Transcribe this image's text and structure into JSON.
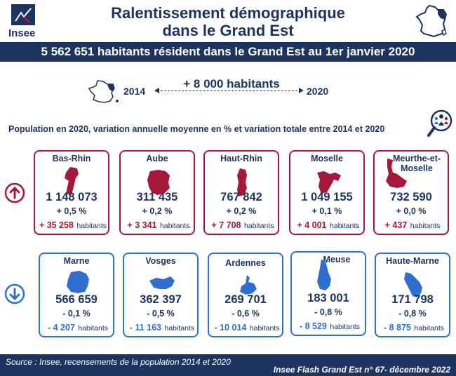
{
  "logo": {
    "text": "Insee"
  },
  "header": {
    "title_line1": "Ralentissement démographique",
    "title_line2": "dans le Grand Est"
  },
  "banner": "5 562 651 habitants résident dans le Grand Est au 1er janvier 2020",
  "evolution": {
    "year_start": "2014",
    "year_end": "2020",
    "delta": "+ 8 000 habitants"
  },
  "subtitle": "Population en 2020, variation annuelle moyenne en % et variation totale entre 2014 et 2020",
  "colors": {
    "navy": "#1d3461",
    "red": "#a6183a",
    "blue": "#2f6fcf"
  },
  "icons": {
    "up": "arrow-up-circle-icon",
    "down": "arrow-down-circle-icon",
    "search": "magnifier-people-icon"
  },
  "unit": "habitants",
  "increasing": [
    {
      "name": "Bas-Rhin",
      "population": "1 148 073",
      "rate": "+ 0,5 %",
      "total": "+ 35 258"
    },
    {
      "name": "Aube",
      "population": "311 435",
      "rate": "+ 0,2 %",
      "total": "+ 3 341"
    },
    {
      "name": "Haut-Rhin",
      "population": "767 842",
      "rate": "+ 0,2 %",
      "total": "+ 7 708"
    },
    {
      "name": "Moselle",
      "population": "1 049 155",
      "rate": "+ 0,1 %",
      "total": "+ 4 001"
    },
    {
      "name": "Meurthe-et-Moselle",
      "population": "732 590",
      "rate": "+ 0,0 %",
      "total": "+ 437"
    }
  ],
  "decreasing": [
    {
      "name": "Marne",
      "population": "566 659",
      "rate": "- 0,1 %",
      "total": "- 4 207"
    },
    {
      "name": "Vosges",
      "population": "362 397",
      "rate": "- 0,5 %",
      "total": "- 11 163"
    },
    {
      "name": "Ardennes",
      "population": "269 701",
      "rate": "- 0,6 %",
      "total": "- 10 014"
    },
    {
      "name": "Meuse",
      "population": "183 001",
      "rate": "- 0,8 %",
      "total": "- 8 529"
    },
    {
      "name": "Haute-Marne",
      "population": "171 798",
      "rate": "- 0,8 %",
      "total": "- 8 875"
    }
  ],
  "footer": {
    "source": "Source : Insee, recensements de la population 2014 et 2020",
    "publication": "Insee Flash Grand Est n° 67- décembre 2022"
  }
}
